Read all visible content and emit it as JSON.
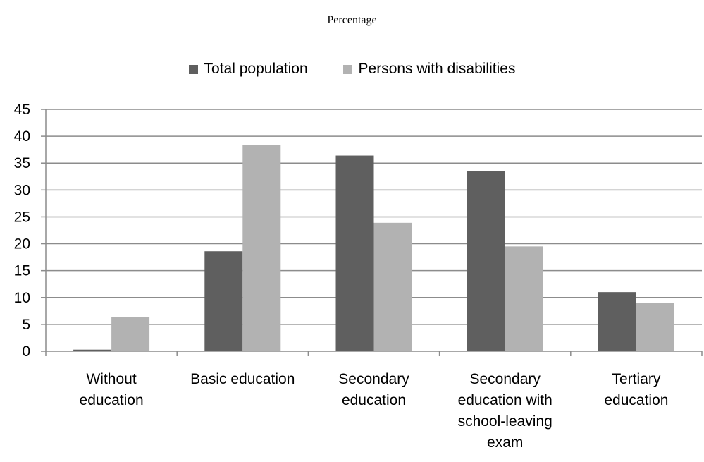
{
  "chart_data": {
    "type": "bar",
    "title": "Percentage",
    "categories": [
      [
        "Without",
        "education"
      ],
      [
        "Basic education"
      ],
      [
        "Secondary",
        "education"
      ],
      [
        "Secondary",
        "education with",
        "school-leaving",
        "exam"
      ],
      [
        "Tertiary",
        "education"
      ]
    ],
    "series": [
      {
        "name": "Total population",
        "color": "#5f5f5f",
        "values": [
          0.3,
          18.6,
          36.4,
          33.5,
          11.0
        ]
      },
      {
        "name": "Persons with disabilities",
        "color": "#b2b2b2",
        "values": [
          6.4,
          38.4,
          23.9,
          19.5,
          9.0
        ]
      }
    ],
    "ylim": [
      0,
      45
    ],
    "yticks": [
      0,
      5,
      10,
      15,
      20,
      25,
      30,
      35,
      40,
      45
    ],
    "grid": true,
    "legend_position": "top",
    "gridline_color": "#8c8c8c"
  }
}
